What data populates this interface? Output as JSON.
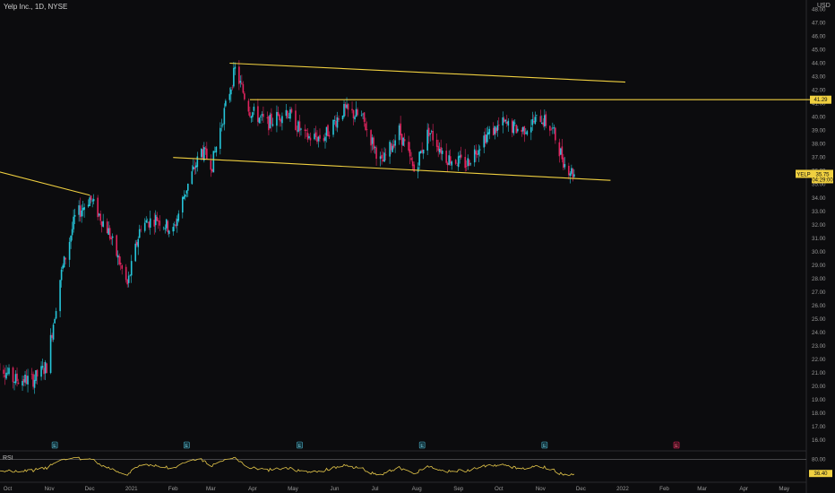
{
  "header": {
    "title": "Yelp Inc., 1D, NYSE",
    "currency": "USD"
  },
  "price_axis": {
    "ticks": [
      "48.00",
      "47.00",
      "46.00",
      "45.00",
      "44.00",
      "43.00",
      "42.00",
      "41.00",
      "40.00",
      "39.00",
      "38.00",
      "37.00",
      "36.00",
      "35.00",
      "34.00",
      "33.00",
      "32.00",
      "31.00",
      "30.00",
      "29.00",
      "28.00",
      "27.00",
      "26.00",
      "25.00",
      "24.00",
      "23.00",
      "22.00",
      "21.00",
      "20.00",
      "19.00",
      "18.00",
      "17.00",
      "16.00"
    ]
  },
  "time_axis": {
    "labels": [
      "Oct",
      "Nov",
      "Dec",
      "2021",
      "Feb",
      "Mar",
      "Apr",
      "May",
      "Jun",
      "Jul",
      "Aug",
      "Sep",
      "Oct",
      "Nov",
      "Dec",
      "2022",
      "Feb",
      "Mar",
      "Apr",
      "May"
    ]
  },
  "price_labels": {
    "resistance": "41.29",
    "symbol": "YELP",
    "last": "35.75",
    "countdown": "04:29:00"
  },
  "rsi": {
    "label": "RSI",
    "level": "80.00",
    "value": "36.40"
  },
  "events": [
    {
      "letter": "E",
      "kind": "earnings"
    },
    {
      "letter": "E",
      "kind": "earnings"
    },
    {
      "letter": "E",
      "kind": "earnings"
    },
    {
      "letter": "E",
      "kind": "earnings"
    },
    {
      "letter": "E",
      "kind": "earnings"
    },
    {
      "letter": "E",
      "kind": "upcoming-earnings"
    }
  ],
  "colors": {
    "up": "#26c6da",
    "down": "#e0245e",
    "trendline": "#f0d040",
    "rsi": "#e6c84a",
    "background": "#0c0c0e"
  },
  "chart_data": {
    "type": "candlestick",
    "symbol": "YELP",
    "interval": "1D",
    "exchange": "NYSE",
    "ylim": [
      16,
      48
    ],
    "last_price": 35.75,
    "series": [
      {
        "name": "path",
        "x": [
          "2020-09-22",
          "2020-10-05",
          "2020-10-20",
          "2020-10-30",
          "2020-11-09",
          "2020-11-20",
          "2020-12-01",
          "2020-12-15",
          "2020-12-29",
          "2021-01-08",
          "2021-01-20",
          "2021-02-01",
          "2021-02-10",
          "2021-02-22",
          "2021-03-02",
          "2021-03-10",
          "2021-03-19",
          "2021-03-30",
          "2021-04-12",
          "2021-04-26",
          "2021-05-10",
          "2021-05-24",
          "2021-06-07",
          "2021-06-21",
          "2021-07-06",
          "2021-07-19",
          "2021-07-30",
          "2021-08-10",
          "2021-08-23",
          "2021-09-07",
          "2021-09-20",
          "2021-10-04",
          "2021-10-18",
          "2021-11-01",
          "2021-11-10",
          "2021-11-19",
          "2021-11-26"
        ],
        "values": [
          22.0,
          20.5,
          20.5,
          21.5,
          28.0,
          32.5,
          34.0,
          31.5,
          27.5,
          32.0,
          32.5,
          31.5,
          34.5,
          37.5,
          36.5,
          40.0,
          43.5,
          40.5,
          39.5,
          40.5,
          38.5,
          38.5,
          40.5,
          40.0,
          36.5,
          39.0,
          36.0,
          39.0,
          37.0,
          36.5,
          38.5,
          39.5,
          39.0,
          40.0,
          39.0,
          36.5,
          35.75
        ]
      }
    ],
    "trendlines": [
      {
        "from": [
          "2020-09-22",
          36.0
        ],
        "to": [
          "2020-12-01",
          34.2
        ]
      },
      {
        "from": [
          "2021-03-15",
          44.0
        ],
        "to": [
          "2022-01-03",
          42.6
        ]
      },
      {
        "from": [
          "2021-02-01",
          37.0
        ],
        "to": [
          "2021-12-23",
          35.3
        ]
      },
      {
        "from": [
          "2021-03-30",
          41.29
        ],
        "to": [
          "2022-05-31",
          41.29
        ]
      }
    ]
  }
}
